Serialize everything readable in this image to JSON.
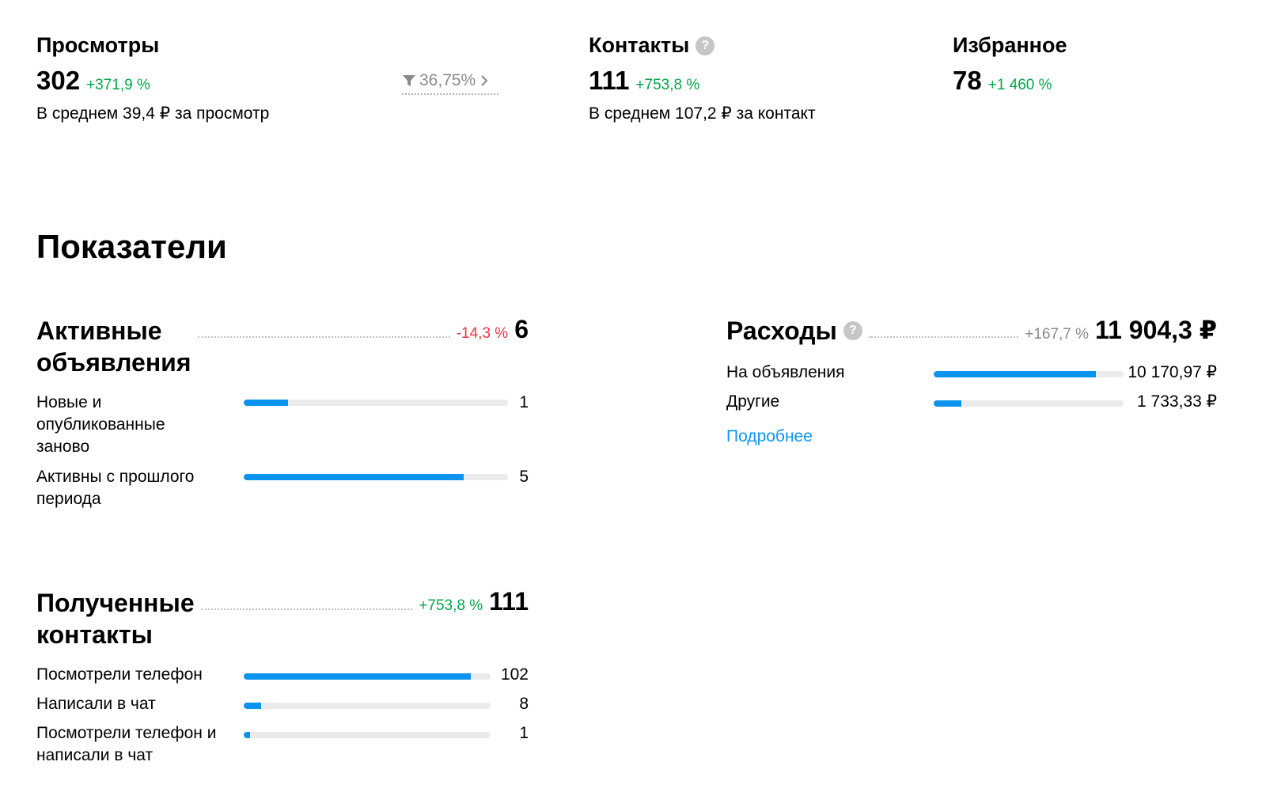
{
  "metrics": {
    "views": {
      "title": "Просмотры",
      "value": "302",
      "delta": "+371,9 %",
      "sub": "В среднем 39,4 ₽ за просмотр",
      "conversion": "36,75%"
    },
    "contacts": {
      "title": "Контакты",
      "value": "111",
      "delta": "+753,8 %",
      "sub": "В среднем 107,2 ₽ за контакт"
    },
    "favorites": {
      "title": "Избранное",
      "value": "78",
      "delta": "+1 460 %"
    }
  },
  "section_title": "Показатели",
  "active_ads": {
    "title_line1": "Активные",
    "title_line2": "объявления",
    "delta": "-14,3 %",
    "total": "6",
    "rows": [
      {
        "label": "Новые и опубликованные заново",
        "value": "1",
        "fraction": 0.167
      },
      {
        "label": "Активны с прошлого периода",
        "value": "5",
        "fraction": 0.833
      }
    ]
  },
  "expenses": {
    "title": "Расходы",
    "delta": "+167,7 %",
    "total": "11 904,3 ₽",
    "rows": [
      {
        "label": "На объявления",
        "value": "10 170,97 ₽",
        "fraction": 0.854
      },
      {
        "label": "Другие",
        "value": "1 733,33 ₽",
        "fraction": 0.146
      }
    ],
    "more_link": "Подробнее"
  },
  "received_contacts": {
    "title_line1": "Полученные",
    "title_line2": "контакты",
    "delta": "+753,8 %",
    "total": "111",
    "rows": [
      {
        "label": "Посмотрели телефон",
        "value": "102",
        "fraction": 0.919
      },
      {
        "label": "Написали в чат",
        "value": "8",
        "fraction": 0.072
      },
      {
        "label": "Посмотрели телефон и написали в чат",
        "value": "1",
        "fraction": 0.009
      }
    ]
  },
  "colors": {
    "accent": "#0a93ef",
    "positive": "#02a849",
    "negative": "#ee3344",
    "muted": "#8a8a8a"
  },
  "icons": {
    "help": "question-circle-icon",
    "funnel": "funnel-icon",
    "chevron": "chevron-right-icon"
  }
}
